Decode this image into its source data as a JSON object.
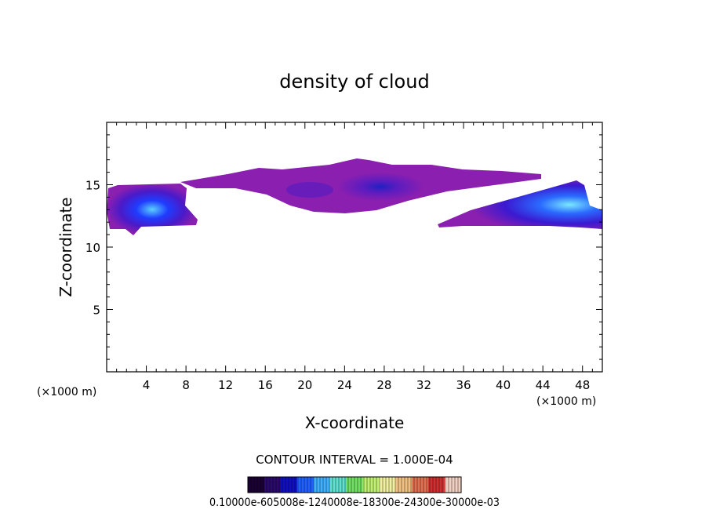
{
  "chart_data": {
    "type": "heatmap",
    "title": "density of cloud",
    "xlabel": "X-coordinate",
    "ylabel": "Z-coordinate",
    "x_unit_left": "(×1000 m)",
    "x_unit_right": "(×1000 m)",
    "xlim": [
      0,
      50
    ],
    "ylim": [
      0,
      20
    ],
    "xticks": [
      4,
      8,
      12,
      16,
      20,
      24,
      28,
      32,
      36,
      40,
      44,
      48
    ],
    "yticks": [
      5,
      10,
      15
    ],
    "contour_interval_label": "CONTOUR INTERVAL = 1.000E-04",
    "colorbar_labels": "0.10000e-605008e-1240008e-18300e-24300e-30000e-03",
    "colorbar_colors": [
      "#1a0033",
      "#2a0a6a",
      "#1010c0",
      "#2060ff",
      "#40b0ff",
      "#60e0d0",
      "#70e060",
      "#c0f070",
      "#f0f0a0",
      "#f0c080",
      "#e07050",
      "#d03030",
      "#f0d0c0"
    ],
    "fill_base_color": "#8a1fb0",
    "fill_mid_color": "#4a1ac8",
    "fill_high_color": "#1f3cff",
    "fill_peak_color": "#5ad0ff",
    "cloud_regions": [
      {
        "name": "left-cloud",
        "x": [
          0.5,
          10
        ],
        "z": [
          11,
          15
        ]
      },
      {
        "name": "upper-band",
        "x": [
          8,
          44
        ],
        "z": [
          13,
          17
        ]
      },
      {
        "name": "right-cloud",
        "x": [
          33,
          50
        ],
        "z": [
          11.5,
          15.5
        ]
      }
    ]
  }
}
